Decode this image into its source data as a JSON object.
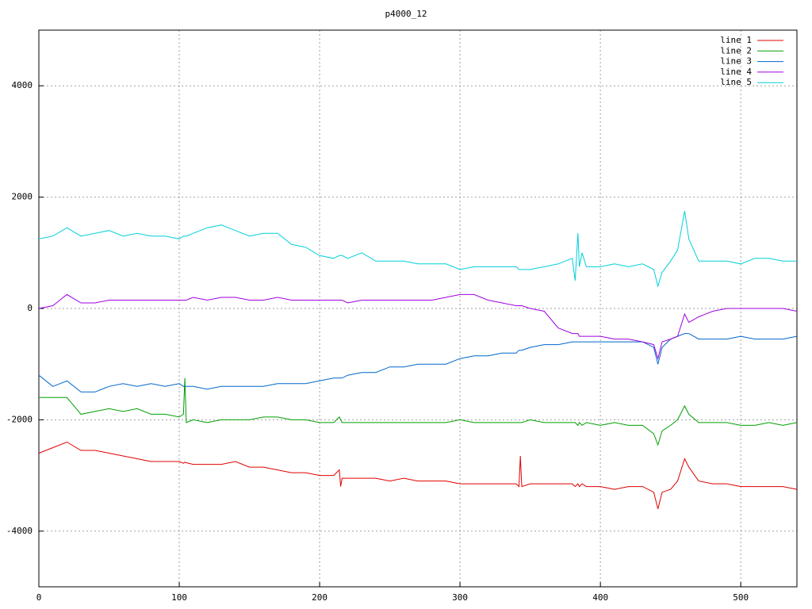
{
  "chart_data": {
    "type": "line",
    "title": "p4000_12",
    "x": [
      0,
      10,
      20,
      30,
      40,
      50,
      60,
      70,
      80,
      90,
      100,
      103,
      104,
      105,
      110,
      120,
      130,
      140,
      150,
      160,
      170,
      180,
      190,
      200,
      210,
      214,
      215,
      216,
      220,
      230,
      240,
      250,
      260,
      270,
      280,
      290,
      300,
      310,
      320,
      330,
      340,
      342,
      343,
      344,
      350,
      360,
      370,
      380,
      382,
      384,
      385,
      387,
      390,
      400,
      410,
      420,
      430,
      438,
      441,
      444,
      450,
      455,
      460,
      463,
      470,
      480,
      490,
      500,
      510,
      520,
      530,
      540
    ],
    "series": [
      {
        "name": "line 1",
        "color": "#e00000",
        "values": [
          -2600,
          -2500,
          -2400,
          -2550,
          -2550,
          -2600,
          -2650,
          -2700,
          -2750,
          -2750,
          -2750,
          -2780,
          -2760,
          -2770,
          -2800,
          -2800,
          -2800,
          -2750,
          -2850,
          -2850,
          -2900,
          -2950,
          -2950,
          -3000,
          -3000,
          -2900,
          -3200,
          -3050,
          -3050,
          -3050,
          -3050,
          -3100,
          -3050,
          -3100,
          -3100,
          -3100,
          -3150,
          -3150,
          -3150,
          -3150,
          -3150,
          -3200,
          -2650,
          -3200,
          -3150,
          -3150,
          -3150,
          -3150,
          -3200,
          -3150,
          -3200,
          -3150,
          -3200,
          -3200,
          -3250,
          -3200,
          -3200,
          -3300,
          -3600,
          -3300,
          -3250,
          -3100,
          -2700,
          -2850,
          -3100,
          -3150,
          -3150,
          -3200,
          -3200,
          -3200,
          -3200,
          -3250
        ]
      },
      {
        "name": "line 2",
        "color": "#00a000",
        "values": [
          -1600,
          -1600,
          -1600,
          -1900,
          -1850,
          -1800,
          -1850,
          -1800,
          -1900,
          -1900,
          -1950,
          -1900,
          -1250,
          -2050,
          -2000,
          -2050,
          -2000,
          -2000,
          -2000,
          -1950,
          -1950,
          -2000,
          -2000,
          -2050,
          -2050,
          -1950,
          -2000,
          -2050,
          -2050,
          -2050,
          -2050,
          -2050,
          -2050,
          -2050,
          -2050,
          -2050,
          -2000,
          -2050,
          -2050,
          -2050,
          -2050,
          -2050,
          -2050,
          -2050,
          -2000,
          -2050,
          -2050,
          -2050,
          -2050,
          -2100,
          -2050,
          -2100,
          -2050,
          -2100,
          -2050,
          -2100,
          -2100,
          -2250,
          -2450,
          -2200,
          -2100,
          -2000,
          -1750,
          -1900,
          -2050,
          -2050,
          -2050,
          -2100,
          -2100,
          -2050,
          -2100,
          -2050
        ]
      },
      {
        "name": "line 3",
        "color": "#0066cc",
        "values": [
          -1200,
          -1400,
          -1300,
          -1500,
          -1500,
          -1400,
          -1350,
          -1400,
          -1350,
          -1400,
          -1350,
          -1400,
          -1400,
          -1400,
          -1400,
          -1450,
          -1400,
          -1400,
          -1400,
          -1400,
          -1350,
          -1350,
          -1350,
          -1300,
          -1250,
          -1250,
          -1250,
          -1250,
          -1200,
          -1150,
          -1150,
          -1050,
          -1050,
          -1000,
          -1000,
          -1000,
          -900,
          -850,
          -850,
          -800,
          -800,
          -750,
          -750,
          -750,
          -700,
          -650,
          -650,
          -600,
          -600,
          -600,
          -600,
          -600,
          -600,
          -600,
          -600,
          -600,
          -600,
          -700,
          -1000,
          -700,
          -550,
          -500,
          -450,
          -450,
          -550,
          -550,
          -550,
          -500,
          -550,
          -550,
          -550,
          -500
        ]
      },
      {
        "name": "line 4",
        "color": "#a000e0",
        "values": [
          0,
          50,
          250,
          100,
          100,
          150,
          150,
          150,
          150,
          150,
          150,
          150,
          150,
          150,
          200,
          150,
          200,
          200,
          150,
          150,
          200,
          150,
          150,
          150,
          150,
          150,
          150,
          150,
          100,
          150,
          150,
          150,
          150,
          150,
          150,
          200,
          250,
          250,
          150,
          100,
          50,
          50,
          50,
          50,
          0,
          -50,
          -350,
          -450,
          -450,
          -450,
          -500,
          -500,
          -500,
          -500,
          -550,
          -550,
          -600,
          -650,
          -900,
          -600,
          -550,
          -500,
          -100,
          -250,
          -150,
          -50,
          0,
          0,
          0,
          0,
          0,
          -50
        ]
      },
      {
        "name": "line 5",
        "color": "#00d0d8",
        "values": [
          1250,
          1300,
          1450,
          1300,
          1350,
          1400,
          1300,
          1350,
          1300,
          1300,
          1250,
          1300,
          1300,
          1300,
          1350,
          1450,
          1500,
          1400,
          1300,
          1350,
          1350,
          1150,
          1100,
          950,
          900,
          950,
          950,
          950,
          900,
          1000,
          850,
          850,
          850,
          800,
          800,
          800,
          700,
          750,
          750,
          750,
          750,
          700,
          700,
          700,
          700,
          750,
          800,
          900,
          500,
          1350,
          750,
          1000,
          750,
          750,
          800,
          750,
          800,
          700,
          400,
          650,
          850,
          1050,
          1750,
          1250,
          850,
          850,
          850,
          800,
          900,
          900,
          850,
          850
        ]
      }
    ],
    "xlim": [
      0,
      540
    ],
    "xticks": [
      0,
      100,
      200,
      300,
      400,
      500
    ],
    "ylim": [
      -5000,
      5000
    ],
    "yticks": [
      -4000,
      -2000,
      0,
      2000,
      4000
    ],
    "grid": true,
    "legend": "top-right"
  }
}
